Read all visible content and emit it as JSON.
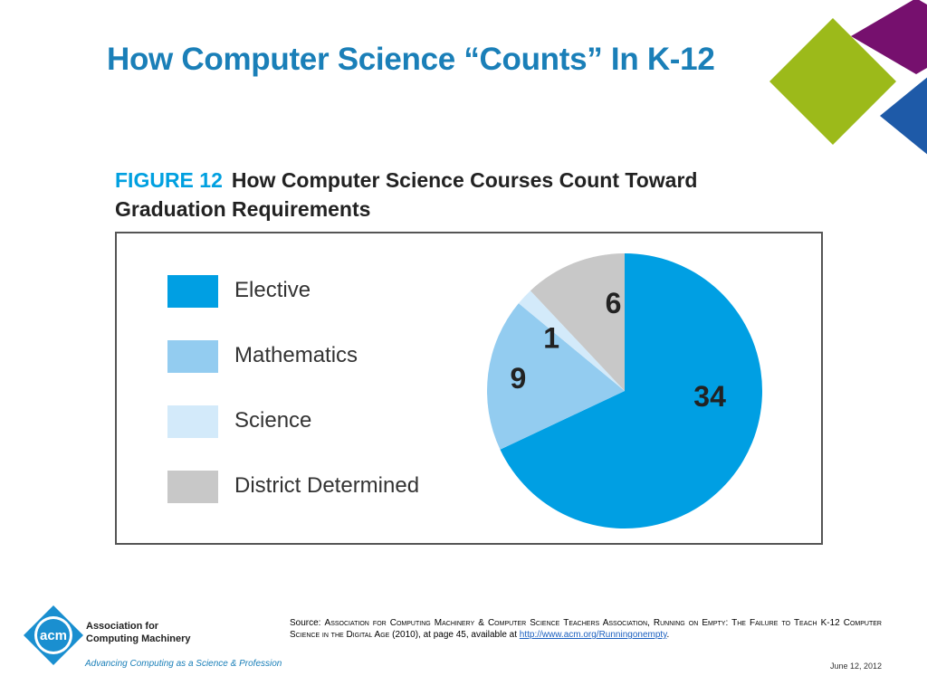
{
  "slide": {
    "title": "How Computer Science “Counts” In K-12",
    "date": "June 12, 2012"
  },
  "figure": {
    "label": "FIGURE 12",
    "title": "How Computer Science Courses Count Toward Graduation Requirements"
  },
  "chart_data": {
    "type": "pie",
    "title": "How Computer Science Courses Count Toward Graduation Requirements",
    "categories": [
      "Elective",
      "Mathematics",
      "Science",
      "District Determined"
    ],
    "values": [
      34,
      9,
      1,
      6
    ],
    "colors": [
      "#009fe3",
      "#93ccf0",
      "#d3eafa",
      "#c8c8c8"
    ],
    "legend_position": "left"
  },
  "source": {
    "prefix": "Source: ",
    "citation": "Association for Computing Machinery & Computer Science Teachers Association, Running on Empty: The Failure to Teach K-12 Computer Science in the Digital Age",
    "middle": " (2010), at page 45, available at ",
    "link": "http://www.acm.org/Runningonempty",
    "suffix": "."
  },
  "logo": {
    "mark": "acm",
    "name_line1": "Association for",
    "name_line2": "Computing Machinery",
    "tagline": "Advancing Computing as a Science & Profession"
  },
  "decor_colors": [
    "#76106e",
    "#9cba1a",
    "#1e5aa8"
  ]
}
